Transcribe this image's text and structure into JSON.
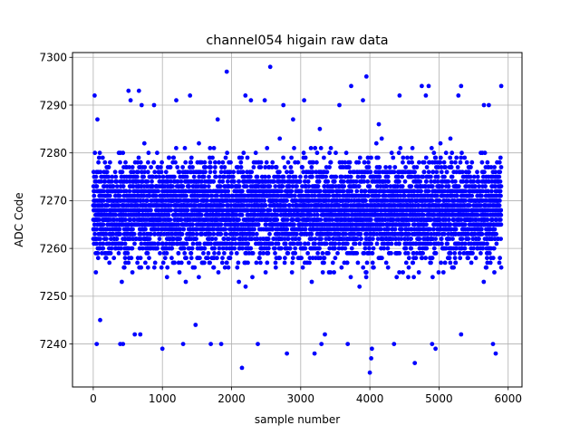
{
  "chart_data": {
    "type": "scatter",
    "title": "channel054 higain raw data",
    "xlabel": "sample number",
    "ylabel": "ADC Code",
    "xlim": [
      -300,
      6200
    ],
    "ylim": [
      7231,
      7301
    ],
    "xticks": [
      0,
      1000,
      2000,
      3000,
      4000,
      5000,
      6000
    ],
    "yticks": [
      7240,
      7250,
      7260,
      7270,
      7280,
      7290,
      7300
    ],
    "xtick_labels": [
      "0",
      "1000",
      "2000",
      "3000",
      "4000",
      "5000",
      "6000"
    ],
    "ytick_labels": [
      "7240",
      "7250",
      "7260",
      "7270",
      "7280",
      "7290",
      "7300"
    ],
    "grid": true,
    "marker_color": "#0000ff",
    "series": [
      {
        "n_points": 5900,
        "x_range": [
          0,
          5900
        ],
        "core_band": [
          7256,
          7280
        ],
        "outliers": [
          {
            "x": 20,
            "y": 7292
          },
          {
            "x": 60,
            "y": 7287
          },
          {
            "x": 50,
            "y": 7240
          },
          {
            "x": 100,
            "y": 7245
          },
          {
            "x": 390,
            "y": 7240
          },
          {
            "x": 430,
            "y": 7240
          },
          {
            "x": 510,
            "y": 7293
          },
          {
            "x": 540,
            "y": 7291
          },
          {
            "x": 660,
            "y": 7293
          },
          {
            "x": 700,
            "y": 7290
          },
          {
            "x": 600,
            "y": 7242
          },
          {
            "x": 680,
            "y": 7242
          },
          {
            "x": 880,
            "y": 7290
          },
          {
            "x": 1000,
            "y": 7239
          },
          {
            "x": 1200,
            "y": 7291
          },
          {
            "x": 1400,
            "y": 7292
          },
          {
            "x": 1300,
            "y": 7240
          },
          {
            "x": 1480,
            "y": 7244
          },
          {
            "x": 1700,
            "y": 7240
          },
          {
            "x": 1800,
            "y": 7287
          },
          {
            "x": 1850,
            "y": 7240
          },
          {
            "x": 1930,
            "y": 7297
          },
          {
            "x": 2150,
            "y": 7235
          },
          {
            "x": 2200,
            "y": 7292
          },
          {
            "x": 2280,
            "y": 7291
          },
          {
            "x": 2380,
            "y": 7240
          },
          {
            "x": 2480,
            "y": 7291
          },
          {
            "x": 2560,
            "y": 7298
          },
          {
            "x": 2750,
            "y": 7290
          },
          {
            "x": 2800,
            "y": 7238
          },
          {
            "x": 2890,
            "y": 7287
          },
          {
            "x": 3050,
            "y": 7291
          },
          {
            "x": 3200,
            "y": 7238
          },
          {
            "x": 3300,
            "y": 7240
          },
          {
            "x": 3350,
            "y": 7242
          },
          {
            "x": 3560,
            "y": 7290
          },
          {
            "x": 3680,
            "y": 7240
          },
          {
            "x": 3730,
            "y": 7294
          },
          {
            "x": 3900,
            "y": 7291
          },
          {
            "x": 3950,
            "y": 7296
          },
          {
            "x": 4000,
            "y": 7234
          },
          {
            "x": 4020,
            "y": 7237
          },
          {
            "x": 4030,
            "y": 7239
          },
          {
            "x": 4130,
            "y": 7286
          },
          {
            "x": 4350,
            "y": 7240
          },
          {
            "x": 4430,
            "y": 7292
          },
          {
            "x": 4650,
            "y": 7236
          },
          {
            "x": 4750,
            "y": 7294
          },
          {
            "x": 4810,
            "y": 7292
          },
          {
            "x": 4850,
            "y": 7294
          },
          {
            "x": 4900,
            "y": 7240
          },
          {
            "x": 4950,
            "y": 7239
          },
          {
            "x": 5280,
            "y": 7292
          },
          {
            "x": 5320,
            "y": 7294
          },
          {
            "x": 5320,
            "y": 7242
          },
          {
            "x": 5650,
            "y": 7290
          },
          {
            "x": 5720,
            "y": 7290
          },
          {
            "x": 5780,
            "y": 7240
          },
          {
            "x": 5820,
            "y": 7238
          },
          {
            "x": 5900,
            "y": 7294
          }
        ]
      }
    ]
  }
}
